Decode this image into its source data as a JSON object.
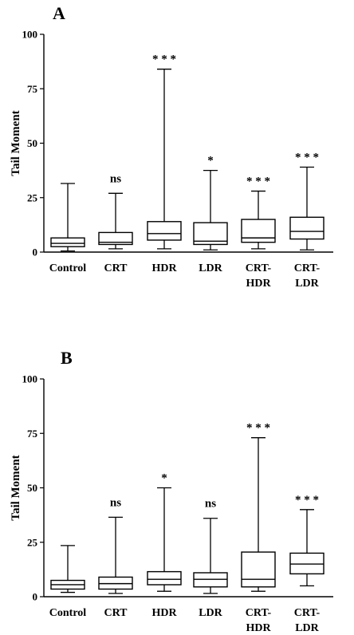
{
  "chart_data": [
    {
      "type": "boxplot",
      "panel": "A",
      "ylabel": "Tail Moment",
      "ylim": [
        0,
        100
      ],
      "yticks": [
        "0",
        "25",
        "50",
        "75",
        "100"
      ],
      "categories": [
        [
          "Control"
        ],
        [
          "CRT"
        ],
        [
          "HDR"
        ],
        [
          "LDR"
        ],
        [
          "CRT-",
          "HDR"
        ],
        [
          "CRT-",
          "LDR"
        ]
      ],
      "boxes": [
        {
          "min": 0.5,
          "q1": 2.5,
          "median": 4,
          "q3": 6.5,
          "max": 31.5,
          "sig": ""
        },
        {
          "min": 1.5,
          "q1": 3.5,
          "median": 4.5,
          "q3": 9,
          "max": 27,
          "sig": "ns"
        },
        {
          "min": 1.5,
          "q1": 5.5,
          "median": 8.5,
          "q3": 14,
          "max": 84,
          "sig": "***"
        },
        {
          "min": 1,
          "q1": 3.5,
          "median": 5,
          "q3": 13.5,
          "max": 37.5,
          "sig": "*"
        },
        {
          "min": 1.5,
          "q1": 4.5,
          "median": 6.5,
          "q3": 15,
          "max": 28,
          "sig": "***"
        },
        {
          "min": 1,
          "q1": 6,
          "median": 9.5,
          "q3": 16,
          "max": 39,
          "sig": "***"
        }
      ]
    },
    {
      "type": "boxplot",
      "panel": "B",
      "ylabel": "Tail Moment",
      "ylim": [
        0,
        100
      ],
      "yticks": [
        "0",
        "25",
        "50",
        "75",
        "100"
      ],
      "categories": [
        [
          "Control"
        ],
        [
          "CRT"
        ],
        [
          "HDR"
        ],
        [
          "LDR"
        ],
        [
          "CRT-",
          "HDR"
        ],
        [
          "CRT-",
          "LDR"
        ]
      ],
      "boxes": [
        {
          "min": 2,
          "q1": 3.5,
          "median": 5.5,
          "q3": 7.5,
          "max": 23.5,
          "sig": ""
        },
        {
          "min": 1.5,
          "q1": 3.5,
          "median": 6,
          "q3": 9,
          "max": 36.5,
          "sig": "ns"
        },
        {
          "min": 2.5,
          "q1": 5.5,
          "median": 8,
          "q3": 11.5,
          "max": 50,
          "sig": "*"
        },
        {
          "min": 1.5,
          "q1": 4.5,
          "median": 8,
          "q3": 11,
          "max": 36,
          "sig": "ns"
        },
        {
          "min": 2.5,
          "q1": 4.5,
          "median": 8,
          "q3": 20.5,
          "max": 73,
          "sig": "***"
        },
        {
          "min": 5,
          "q1": 10.5,
          "median": 15,
          "q3": 20,
          "max": 40,
          "sig": "***"
        }
      ]
    }
  ]
}
